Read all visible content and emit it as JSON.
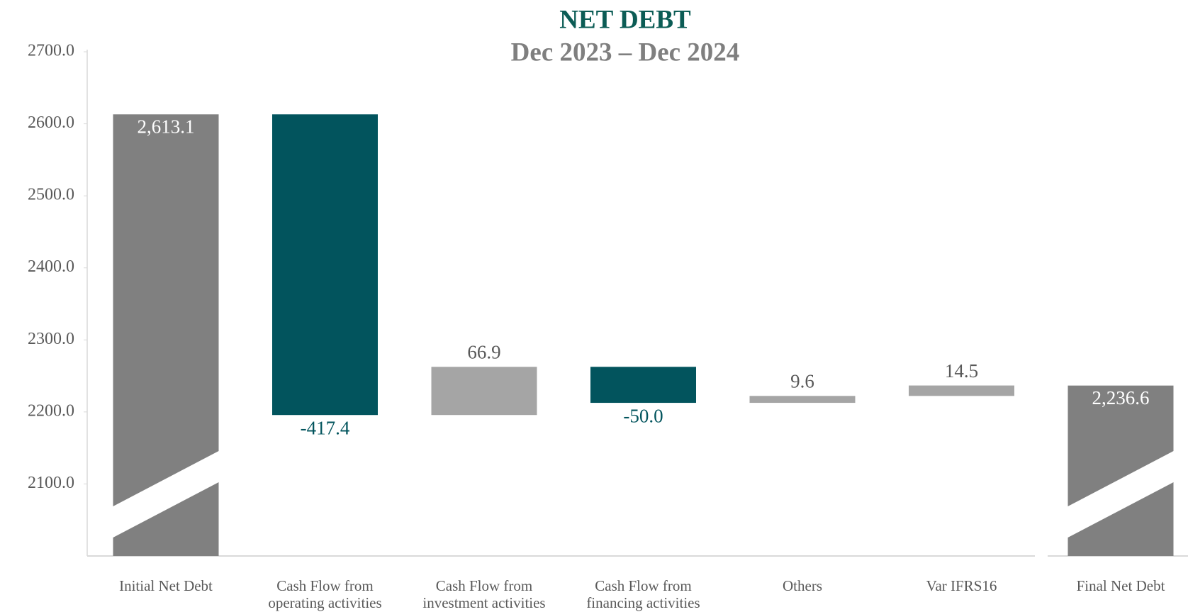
{
  "chart_data": {
    "type": "waterfall",
    "title": "NET DEBT",
    "subtitle": "Dec 2023 – Dec 2024",
    "categories": [
      "Initial Net Debt",
      "Cash Flow from operating activities",
      "Cash Flow from investment activities",
      "Cash Flow from financing activities",
      "Others",
      "Var IFRS16",
      "Final Net Debt"
    ],
    "values": [
      2613.1,
      -417.4,
      66.9,
      -50.0,
      9.6,
      14.5,
      2236.6
    ],
    "value_labels": [
      "2,613.1",
      "-417.4",
      "66.9",
      "-50.0",
      "9.6",
      "14.5",
      "2,236.6"
    ],
    "colors": {
      "total": "#808080",
      "increase": "#a5a5a5",
      "decrease": "#02545d"
    },
    "ylim": [
      2000,
      2700
    ],
    "yticks": [
      {
        "value": 2100,
        "label": "2100.0"
      },
      {
        "value": 2200,
        "label": "2200.0"
      },
      {
        "value": 2300,
        "label": "2300.0"
      },
      {
        "value": 2400,
        "label": "2400.0"
      },
      {
        "value": 2500,
        "label": "2500.0"
      },
      {
        "value": 2600,
        "label": "2600.0"
      },
      {
        "value": 2700,
        "label": "2700.0"
      }
    ],
    "grid": false
  }
}
